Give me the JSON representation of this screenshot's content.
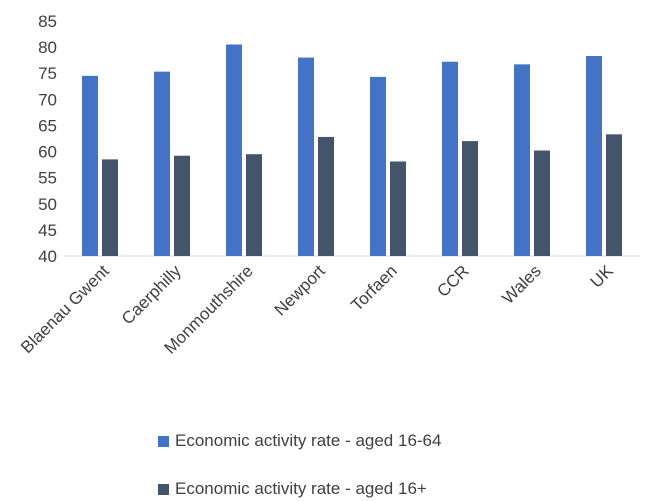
{
  "chart_data": {
    "type": "bar",
    "categories": [
      "Blaenau Gwent",
      "Caerphilly",
      "Monmouthshire",
      "Newport",
      "Torfaen",
      "CCR",
      "Wales",
      "UK"
    ],
    "series": [
      {
        "name": "Economic activity rate - aged 16-64",
        "values": [
          74.5,
          75.3,
          80.5,
          78.0,
          74.3,
          77.2,
          76.7,
          78.3
        ],
        "color": "#4472C4"
      },
      {
        "name": "Economic activity rate - aged 16+",
        "values": [
          58.5,
          59.2,
          59.5,
          62.8,
          58.1,
          62.0,
          60.2,
          63.3
        ],
        "color": "#44546A"
      }
    ],
    "title": "",
    "xlabel": "",
    "ylabel": "",
    "ylim": [
      40,
      85
    ],
    "yticks": [
      40,
      45,
      50,
      55,
      60,
      65,
      70,
      75,
      80,
      85
    ],
    "grid": false,
    "legend": "bottom"
  }
}
